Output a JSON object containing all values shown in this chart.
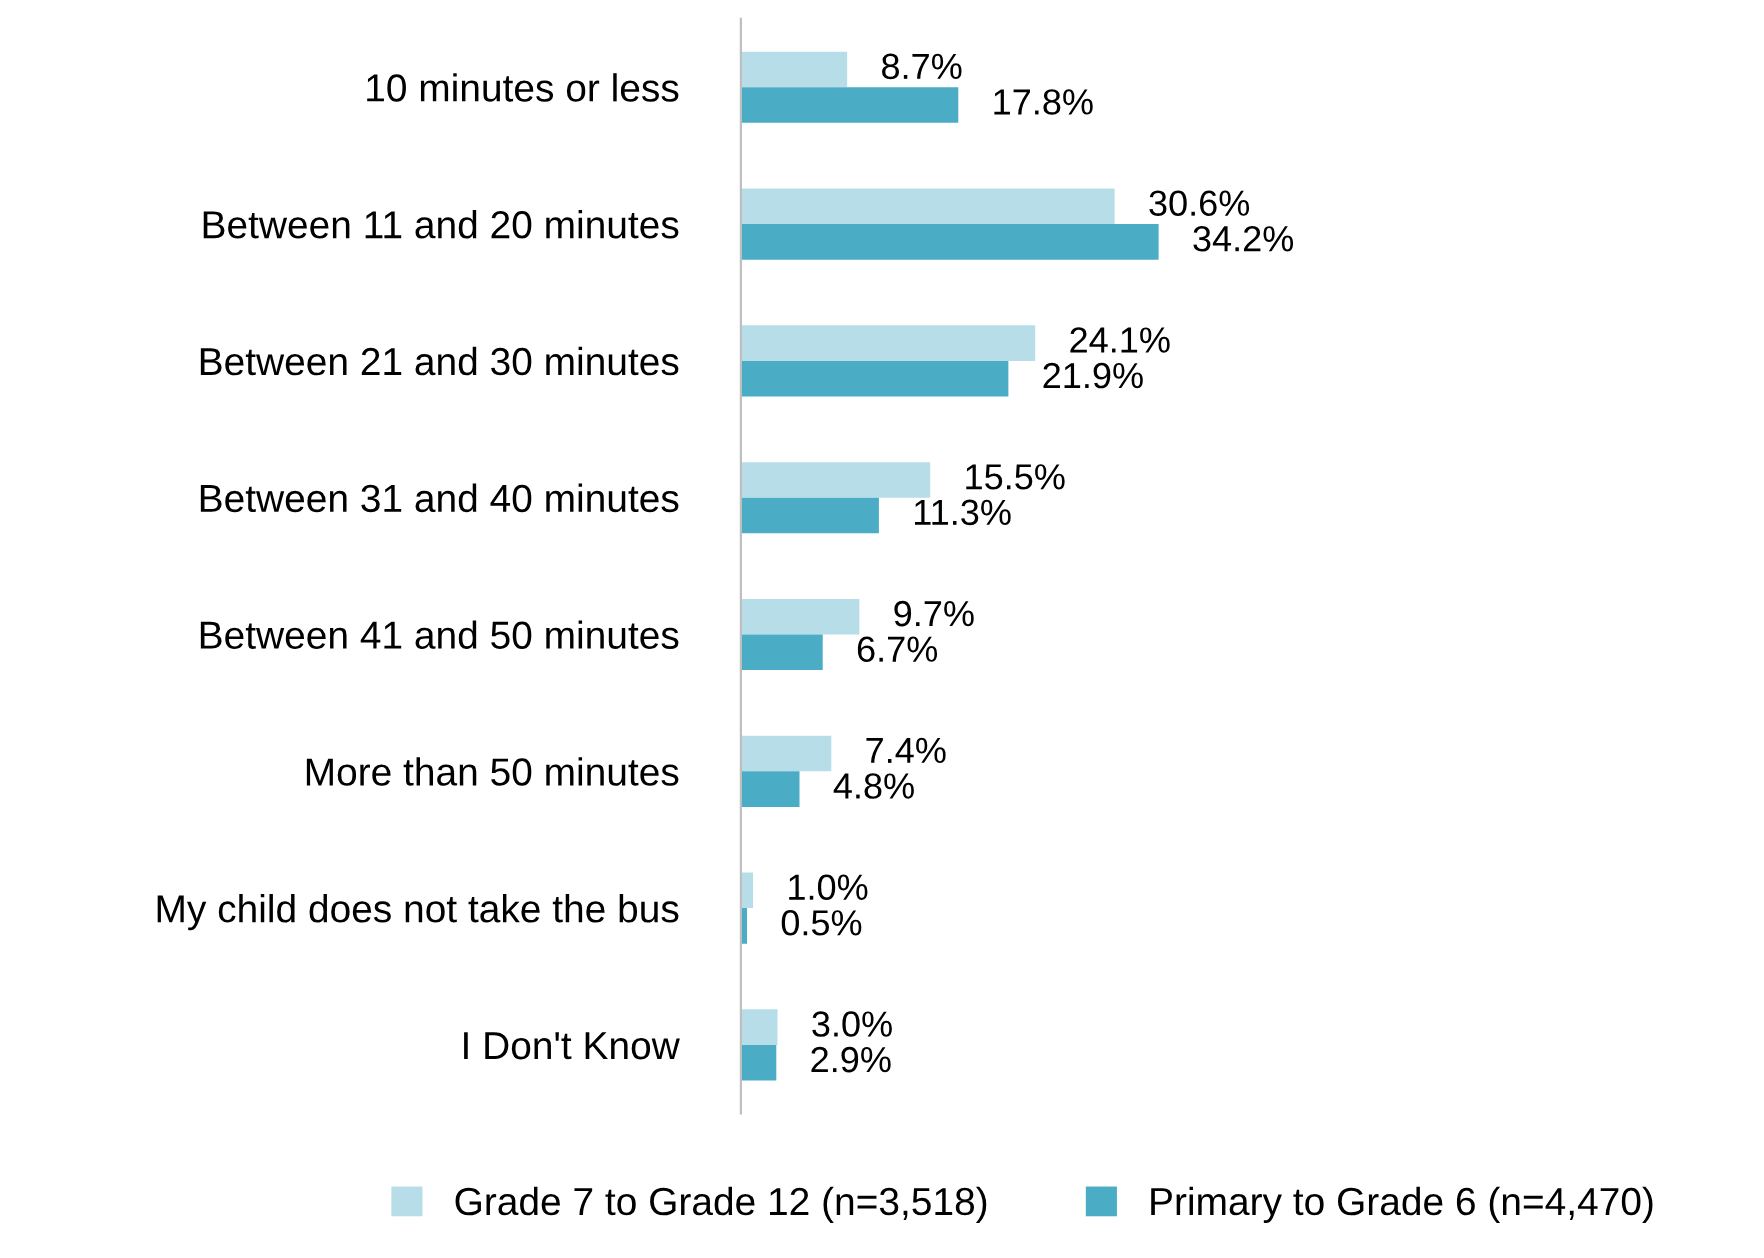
{
  "chart_data": {
    "type": "bar",
    "orientation": "horizontal",
    "categories": [
      "10 minutes or less",
      "Between 11 and 20 minutes",
      "Between 21 and 30 minutes",
      "Between 31 and 40 minutes",
      "Between 41 and 50 minutes",
      "More than 50 minutes",
      "My child does not take the bus",
      "I Don't Know"
    ],
    "series": [
      {
        "name": "Grade 7 to Grade 12 (n=3,518)",
        "color": "#b7dee8",
        "values": [
          8.7,
          30.6,
          24.1,
          15.5,
          9.7,
          7.4,
          1.0,
          3.0
        ],
        "value_labels": [
          "8.7%",
          "30.6%",
          "24.1%",
          "15.5%",
          "9.7%",
          "7.4%",
          "1.0%",
          "3.0%"
        ]
      },
      {
        "name": "Primary to Grade 6 (n=4,470)",
        "color": "#4bacc6",
        "values": [
          17.8,
          34.2,
          21.9,
          11.3,
          6.7,
          4.8,
          0.5,
          2.9
        ],
        "value_labels": [
          "17.8%",
          "34.2%",
          "21.9%",
          "11.3%",
          "6.7%",
          "4.8%",
          "0.5%",
          "2.9%"
        ]
      }
    ],
    "legend": "bottom",
    "grid": false
  }
}
